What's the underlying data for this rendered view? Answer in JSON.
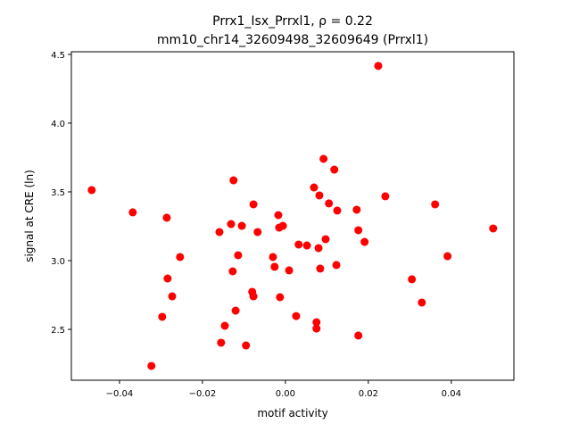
{
  "chart_data": {
    "type": "scatter",
    "title_line1": "Prrx1_Isx_Prrxl1, ρ = 0.22",
    "title_line2": "mm10_chr14_32609498_32609649 (Prrxl1)",
    "xlabel": "motif activity",
    "ylabel": "signal at CRE (ln)",
    "xlim": [
      -0.0516,
      0.0551
    ],
    "ylim": [
      2.13,
      4.519
    ],
    "xticks": [
      -0.04,
      -0.02,
      0.0,
      0.02,
      0.04
    ],
    "xtick_labels": [
      "−0.04",
      "−0.02",
      "0.00",
      "0.02",
      "0.04"
    ],
    "yticks": [
      2.5,
      3.0,
      3.5,
      4.0,
      4.5
    ],
    "ytick_labels": [
      "2.5",
      "3.0",
      "3.5",
      "4.0",
      "4.5"
    ],
    "grid": false,
    "marker_color": "#ff0000",
    "points": [
      [
        -0.0467,
        3.513
      ],
      [
        -0.0368,
        3.351
      ],
      [
        -0.0286,
        3.312
      ],
      [
        -0.0297,
        2.591
      ],
      [
        -0.0323,
        2.234
      ],
      [
        -0.0284,
        2.87
      ],
      [
        -0.0273,
        2.74
      ],
      [
        -0.0254,
        3.026
      ],
      [
        -0.0159,
        3.208
      ],
      [
        -0.0155,
        2.403
      ],
      [
        -0.0146,
        2.526
      ],
      [
        -0.0131,
        3.266
      ],
      [
        -0.0125,
        3.584
      ],
      [
        -0.0127,
        2.922
      ],
      [
        -0.012,
        2.636
      ],
      [
        -0.0114,
        3.039
      ],
      [
        -0.0105,
        3.253
      ],
      [
        -0.0095,
        2.383
      ],
      [
        -0.0077,
        3.409
      ],
      [
        -0.008,
        2.773
      ],
      [
        -0.0077,
        2.74
      ],
      [
        -0.0067,
        3.208
      ],
      [
        -0.003,
        3.026
      ],
      [
        -0.0026,
        2.955
      ],
      [
        -0.0017,
        3.331
      ],
      [
        -0.0015,
        3.24
      ],
      [
        -0.0006,
        3.253
      ],
      [
        -0.0013,
        2.734
      ],
      [
        0.0009,
        2.929
      ],
      [
        0.0026,
        2.597
      ],
      [
        0.0032,
        3.117
      ],
      [
        0.0052,
        3.11
      ],
      [
        0.0069,
        3.532
      ],
      [
        0.0082,
        3.474
      ],
      [
        0.008,
        3.091
      ],
      [
        0.0075,
        2.552
      ],
      [
        0.0075,
        2.506
      ],
      [
        0.0084,
        2.942
      ],
      [
        0.0092,
        3.74
      ],
      [
        0.0097,
        3.156
      ],
      [
        0.0105,
        3.416
      ],
      [
        0.0118,
        3.662
      ],
      [
        0.0125,
        3.364
      ],
      [
        0.0123,
        2.968
      ],
      [
        0.0172,
        3.37
      ],
      [
        0.0176,
        3.221
      ],
      [
        0.0176,
        2.455
      ],
      [
        0.0191,
        3.136
      ],
      [
        0.0224,
        4.416
      ],
      [
        0.0241,
        3.468
      ],
      [
        0.0305,
        2.864
      ],
      [
        0.0329,
        2.695
      ],
      [
        0.0361,
        3.409
      ],
      [
        0.0391,
        3.032
      ],
      [
        0.0501,
        3.234
      ]
    ]
  }
}
